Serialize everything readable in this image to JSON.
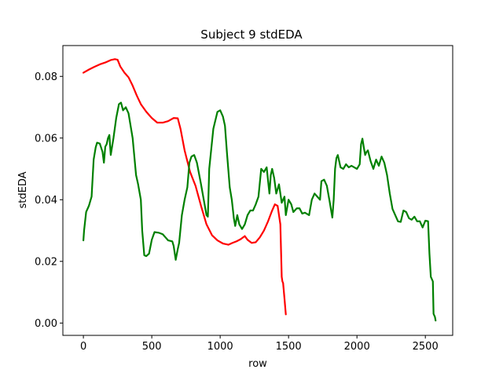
{
  "chart_data": {
    "type": "line",
    "title": "Subject 9 stdEDA",
    "xlabel": "row",
    "ylabel": "stdEDA",
    "xlim": [
      -150,
      2700
    ],
    "ylim": [
      -0.004,
      0.09
    ],
    "x_ticks": [
      0,
      500,
      1000,
      1500,
      2000,
      2500
    ],
    "x_tick_labels": [
      "0",
      "500",
      "1000",
      "1500",
      "2000",
      "2500"
    ],
    "y_ticks": [
      0.0,
      0.02,
      0.04,
      0.06,
      0.08
    ],
    "y_tick_labels": [
      "0.00",
      "0.02",
      "0.04",
      "0.06",
      "0.08"
    ],
    "grid": false,
    "colors": {
      "red_series": "#ff0000",
      "green_series": "#008000"
    },
    "series": [
      {
        "color": "#ff0000",
        "x": [
          0,
          40,
          80,
          120,
          160,
          200,
          230,
          250,
          270,
          300,
          330,
          360,
          390,
          420,
          460,
          500,
          540,
          580,
          620,
          660,
          690,
          710,
          740,
          780,
          820,
          860,
          900,
          940,
          980,
          1020,
          1060,
          1090,
          1120,
          1150,
          1180,
          1200,
          1230,
          1260,
          1290,
          1320,
          1350,
          1380,
          1400,
          1420,
          1440,
          1450,
          1455,
          1460,
          1470,
          1480
        ],
        "y": [
          0.0812,
          0.0822,
          0.0831,
          0.0839,
          0.0845,
          0.0853,
          0.0856,
          0.0854,
          0.0832,
          0.0812,
          0.0797,
          0.077,
          0.0738,
          0.071,
          0.0685,
          0.0665,
          0.065,
          0.065,
          0.0655,
          0.0665,
          0.0664,
          0.063,
          0.056,
          0.049,
          0.0445,
          0.038,
          0.032,
          0.0285,
          0.0268,
          0.0258,
          0.0254,
          0.026,
          0.0265,
          0.0272,
          0.0282,
          0.027,
          0.026,
          0.0262,
          0.0278,
          0.03,
          0.033,
          0.0365,
          0.0385,
          0.038,
          0.032,
          0.015,
          0.0135,
          0.013,
          0.008,
          0.0028
        ]
      },
      {
        "color": "#008000",
        "x": [
          0,
          5,
          20,
          40,
          60,
          75,
          90,
          100,
          120,
          140,
          150,
          160,
          170,
          180,
          190,
          200,
          220,
          240,
          260,
          275,
          290,
          310,
          330,
          360,
          385,
          400,
          420,
          430,
          445,
          460,
          480,
          500,
          520,
          550,
          580,
          600,
          620,
          650,
          660,
          675,
          690,
          700,
          720,
          740,
          760,
          775,
          790,
          810,
          830,
          860,
          880,
          900,
          910,
          920,
          950,
          980,
          1000,
          1020,
          1035,
          1050,
          1070,
          1085,
          1100,
          1110,
          1125,
          1140,
          1160,
          1180,
          1200,
          1220,
          1240,
          1260,
          1280,
          1300,
          1320,
          1340,
          1360,
          1370,
          1380,
          1395,
          1410,
          1430,
          1450,
          1470,
          1480,
          1500,
          1520,
          1535,
          1560,
          1580,
          1600,
          1620,
          1650,
          1670,
          1690,
          1710,
          1730,
          1740,
          1760,
          1780,
          1800,
          1820,
          1830,
          1840,
          1850,
          1860,
          1880,
          1900,
          1920,
          1940,
          1960,
          1980,
          2000,
          2020,
          2030,
          2040,
          2050,
          2060,
          2070,
          2080,
          2100,
          2120,
          2140,
          2160,
          2180,
          2200,
          2220,
          2240,
          2260,
          2280,
          2300,
          2320,
          2340,
          2360,
          2380,
          2400,
          2420,
          2440,
          2460,
          2480,
          2500,
          2520,
          2530,
          2540,
          2550,
          2555,
          2560,
          2570,
          2575
        ],
        "y": [
          0.0268,
          0.03,
          0.036,
          0.038,
          0.041,
          0.053,
          0.057,
          0.0585,
          0.0582,
          0.0555,
          0.052,
          0.0572,
          0.058,
          0.06,
          0.061,
          0.0545,
          0.06,
          0.0665,
          0.071,
          0.0715,
          0.069,
          0.07,
          0.068,
          0.06,
          0.048,
          0.045,
          0.04,
          0.03,
          0.022,
          0.0217,
          0.0225,
          0.027,
          0.0295,
          0.0293,
          0.0288,
          0.0278,
          0.0268,
          0.0265,
          0.025,
          0.0205,
          0.024,
          0.026,
          0.035,
          0.04,
          0.044,
          0.052,
          0.054,
          0.0545,
          0.052,
          0.045,
          0.04,
          0.035,
          0.0345,
          0.05,
          0.063,
          0.0685,
          0.069,
          0.067,
          0.064,
          0.055,
          0.044,
          0.04,
          0.034,
          0.0315,
          0.035,
          0.032,
          0.0305,
          0.032,
          0.035,
          0.0365,
          0.0365,
          0.0385,
          0.041,
          0.05,
          0.049,
          0.0505,
          0.042,
          0.048,
          0.05,
          0.047,
          0.042,
          0.045,
          0.039,
          0.041,
          0.035,
          0.04,
          0.0385,
          0.036,
          0.0372,
          0.0372,
          0.0355,
          0.0358,
          0.035,
          0.04,
          0.042,
          0.041,
          0.04,
          0.046,
          0.0465,
          0.0445,
          0.0395,
          0.0342,
          0.04,
          0.05,
          0.0535,
          0.0545,
          0.0505,
          0.05,
          0.0515,
          0.0505,
          0.051,
          0.0505,
          0.05,
          0.0515,
          0.058,
          0.0598,
          0.057,
          0.0545,
          0.0555,
          0.056,
          0.0525,
          0.05,
          0.053,
          0.051,
          0.054,
          0.052,
          0.048,
          0.042,
          0.037,
          0.035,
          0.033,
          0.0328,
          0.0365,
          0.036,
          0.034,
          0.0335,
          0.0345,
          0.033,
          0.033,
          0.031,
          0.0332,
          0.033,
          0.0225,
          0.015,
          0.014,
          0.0135,
          0.003,
          0.002,
          0.0008
        ]
      }
    ]
  }
}
